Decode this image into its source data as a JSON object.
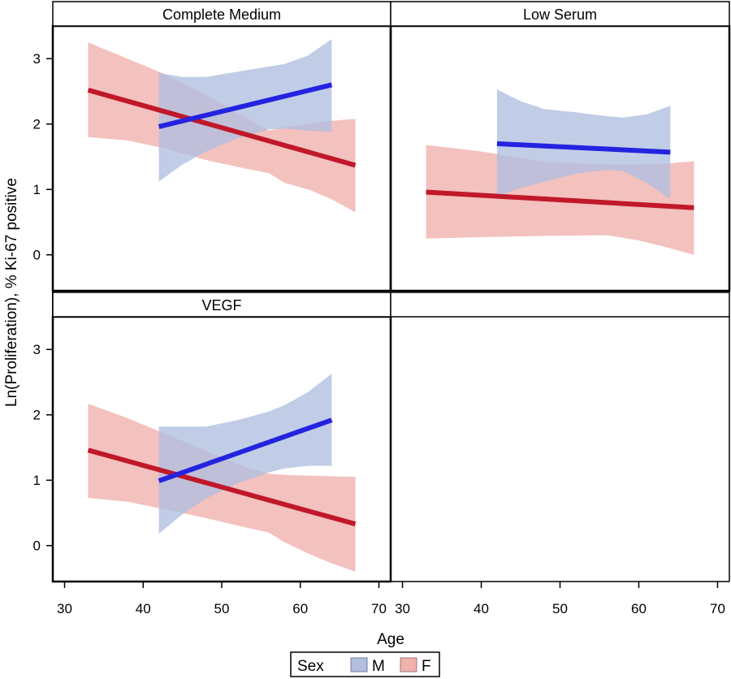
{
  "chart_data": {
    "type": "line",
    "xlabel": "Age",
    "ylabel": "Ln(Proliferation), % Ki-67 positive",
    "xlim": [
      28.5,
      71.5
    ],
    "ylim": [
      -0.55,
      3.5
    ],
    "x_ticks": [
      30,
      40,
      50,
      60,
      70
    ],
    "y_ticks": [
      0,
      1,
      2,
      3
    ],
    "legend": {
      "title": "Sex",
      "placement": "bottom-center",
      "entries": [
        {
          "key": "M",
          "label": "M",
          "line_color": "#2323e0",
          "band_color": "#b0bfe0"
        },
        {
          "key": "F",
          "label": "F",
          "line_color": "#c0182a",
          "band_color": "#f0b0ac"
        }
      ]
    },
    "panels": [
      {
        "title": "Complete Medium",
        "series": [
          {
            "key": "F",
            "line": [
              [
                33,
                2.52
              ],
              [
                67,
                1.37
              ]
            ],
            "band": {
              "x": [
                33,
                38,
                43,
                48,
                53,
                56,
                58,
                61,
                64,
                67
              ],
              "lower": [
                1.8,
                1.75,
                1.62,
                1.45,
                1.32,
                1.25,
                1.1,
                1.0,
                0.85,
                0.65
              ],
              "upper": [
                3.25,
                3.0,
                2.75,
                2.45,
                2.1,
                1.9,
                1.95,
                2.0,
                2.05,
                2.08
              ]
            }
          },
          {
            "key": "M",
            "line": [
              [
                42,
                1.96
              ],
              [
                64,
                2.6
              ]
            ],
            "band": {
              "x": [
                42,
                45,
                48,
                52,
                56,
                58,
                61,
                64
              ],
              "lower": [
                1.12,
                1.38,
                1.58,
                1.78,
                1.92,
                1.93,
                1.9,
                1.88
              ],
              "upper": [
                2.78,
                2.72,
                2.72,
                2.8,
                2.88,
                2.92,
                3.05,
                3.3
              ]
            }
          }
        ]
      },
      {
        "title": "Low Serum",
        "series": [
          {
            "key": "F",
            "line": [
              [
                33,
                0.96
              ],
              [
                67,
                0.72
              ]
            ],
            "band": {
              "x": [
                33,
                40,
                48,
                56,
                60,
                64,
                67
              ],
              "lower": [
                0.25,
                0.27,
                0.29,
                0.3,
                0.22,
                0.1,
                0.0
              ],
              "upper": [
                1.68,
                1.58,
                1.42,
                1.38,
                1.38,
                1.4,
                1.43
              ]
            }
          },
          {
            "key": "M",
            "line": [
              [
                42,
                1.7
              ],
              [
                64,
                1.57
              ]
            ],
            "band": {
              "x": [
                42,
                45,
                48,
                52,
                56,
                58,
                61,
                64
              ],
              "lower": [
                0.9,
                1.02,
                1.12,
                1.24,
                1.3,
                1.28,
                1.1,
                0.85
              ],
              "upper": [
                2.53,
                2.35,
                2.23,
                2.18,
                2.12,
                2.1,
                2.15,
                2.28
              ]
            }
          }
        ]
      },
      {
        "title": "VEGF",
        "series": [
          {
            "key": "F",
            "line": [
              [
                33,
                1.46
              ],
              [
                67,
                0.33
              ]
            ],
            "band": {
              "x": [
                33,
                38,
                43,
                48,
                53,
                56,
                58,
                61,
                64,
                67
              ],
              "lower": [
                0.73,
                0.67,
                0.55,
                0.42,
                0.28,
                0.2,
                0.05,
                -0.12,
                -0.27,
                -0.4
              ],
              "upper": [
                2.17,
                1.95,
                1.7,
                1.45,
                1.2,
                1.1,
                1.08,
                1.07,
                1.06,
                1.05
              ]
            }
          },
          {
            "key": "M",
            "line": [
              [
                42,
                0.99
              ],
              [
                64,
                1.92
              ]
            ],
            "band": {
              "x": [
                42,
                45,
                48,
                52,
                56,
                58,
                61,
                64
              ],
              "lower": [
                0.18,
                0.48,
                0.72,
                0.95,
                1.12,
                1.18,
                1.22,
                1.22
              ],
              "upper": [
                1.82,
                1.82,
                1.82,
                1.92,
                2.05,
                2.15,
                2.35,
                2.63
              ]
            }
          }
        ]
      },
      {
        "title": "",
        "series": []
      }
    ]
  }
}
